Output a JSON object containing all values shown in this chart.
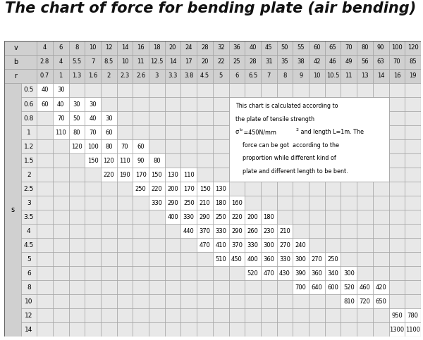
{
  "title": "The chart of force for bending plate (air bending)",
  "title_fontsize": 15,
  "background_color": "#ffffff",
  "header_bg": "#d0d0d0",
  "cell_bg_light": "#e8e8e8",
  "cell_bg_white": "#ffffff",
  "grid_color": "#999999",
  "v_row": [
    "4",
    "6",
    "8",
    "10",
    "12",
    "14",
    "16",
    "18",
    "20",
    "24",
    "28",
    "32",
    "36",
    "40",
    "45",
    "50",
    "55",
    "60",
    "65",
    "70",
    "80",
    "90",
    "100",
    "120"
  ],
  "b_row": [
    "2.8",
    "4",
    "5.5",
    "7",
    "8.5",
    "10",
    "11",
    "12.5",
    "14",
    "17",
    "20",
    "22",
    "25",
    "28",
    "31",
    "35",
    "38",
    "42",
    "46",
    "49",
    "56",
    "63",
    "70",
    "85"
  ],
  "r_row": [
    "0.7",
    "1",
    "1.3",
    "1.6",
    "2",
    "2.3",
    "2.6",
    "3",
    "3.3",
    "3.8",
    "4.5",
    "5",
    "6",
    "6.5",
    "7",
    "8",
    "9",
    "10",
    "10.5",
    "11",
    "13",
    "14",
    "16",
    "19"
  ],
  "s_rows": [
    {
      "s": "0.5",
      "data": [
        "40",
        "30",
        "",
        "",
        "",
        "",
        "",
        "",
        "",
        "",
        "",
        "",
        "",
        "",
        "",
        "",
        "",
        "",
        "",
        "",
        "",
        "",
        "",
        ""
      ]
    },
    {
      "s": "0.6",
      "data": [
        "60",
        "40",
        "30",
        "30",
        "",
        "",
        "",
        "",
        "",
        "",
        "",
        "",
        "",
        "",
        "",
        "",
        "",
        "",
        "",
        "",
        "",
        "",
        "",
        ""
      ]
    },
    {
      "s": "0.8",
      "data": [
        "",
        "70",
        "50",
        "40",
        "30",
        "",
        "",
        "",
        "",
        "",
        "",
        "",
        "",
        "",
        "",
        "",
        "",
        "",
        "",
        "",
        "",
        "",
        "",
        ""
      ]
    },
    {
      "s": "1",
      "data": [
        "",
        "110",
        "80",
        "70",
        "60",
        "",
        "",
        "",
        "",
        "",
        "",
        "",
        "",
        "",
        "",
        "",
        "",
        "",
        "",
        "",
        "",
        "",
        "",
        ""
      ]
    },
    {
      "s": "1.2",
      "data": [
        "",
        "",
        "120",
        "100",
        "80",
        "70",
        "60",
        "",
        "",
        "",
        "",
        "",
        "",
        "",
        "",
        "",
        "",
        "",
        "",
        "",
        "",
        "",
        "",
        ""
      ]
    },
    {
      "s": "1.5",
      "data": [
        "",
        "",
        "",
        "150",
        "120",
        "110",
        "90",
        "80",
        "",
        "",
        "",
        "",
        "",
        "",
        "",
        "",
        "",
        "",
        "",
        "",
        "",
        "",
        "",
        ""
      ]
    },
    {
      "s": "2",
      "data": [
        "",
        "",
        "",
        "",
        "220",
        "190",
        "170",
        "150",
        "130",
        "110",
        "",
        "",
        "",
        "",
        "",
        "",
        "",
        "",
        "",
        "",
        "",
        "",
        "",
        ""
      ]
    },
    {
      "s": "2.5",
      "data": [
        "",
        "",
        "",
        "",
        "",
        "",
        "250",
        "220",
        "200",
        "170",
        "150",
        "130",
        "",
        "",
        "",
        "",
        "",
        "",
        "",
        "",
        "",
        "",
        "",
        ""
      ]
    },
    {
      "s": "3",
      "data": [
        "",
        "",
        "",
        "",
        "",
        "",
        "",
        "330",
        "290",
        "250",
        "210",
        "180",
        "160",
        "",
        "",
        "",
        "",
        "",
        "",
        "",
        "",
        "",
        "",
        ""
      ]
    },
    {
      "s": "3.5",
      "data": [
        "",
        "",
        "",
        "",
        "",
        "",
        "",
        "",
        "400",
        "330",
        "290",
        "250",
        "220",
        "200",
        "180",
        "",
        "",
        "",
        "",
        "",
        "",
        "",
        "",
        ""
      ]
    },
    {
      "s": "4",
      "data": [
        "",
        "",
        "",
        "",
        "",
        "",
        "",
        "",
        "",
        "440",
        "370",
        "330",
        "290",
        "260",
        "230",
        "210",
        "",
        "",
        "",
        "",
        "",
        "",
        "",
        ""
      ]
    },
    {
      "s": "4.5",
      "data": [
        "",
        "",
        "",
        "",
        "",
        "",
        "",
        "",
        "",
        "",
        "470",
        "410",
        "370",
        "330",
        "300",
        "270",
        "240",
        "",
        "",
        "",
        "",
        "",
        "",
        ""
      ]
    },
    {
      "s": "5",
      "data": [
        "",
        "",
        "",
        "",
        "",
        "",
        "",
        "",
        "",
        "",
        "",
        "510",
        "450",
        "400",
        "360",
        "330",
        "300",
        "270",
        "250",
        "",
        "",
        "",
        "",
        ""
      ]
    },
    {
      "s": "6",
      "data": [
        "",
        "",
        "",
        "",
        "",
        "",
        "",
        "",
        "",
        "",
        "",
        "",
        "",
        "520",
        "470",
        "430",
        "390",
        "360",
        "340",
        "300",
        "",
        "",
        "",
        ""
      ]
    },
    {
      "s": "8",
      "data": [
        "",
        "",
        "",
        "",
        "",
        "",
        "",
        "",
        "",
        "",
        "",
        "",
        "",
        "",
        "",
        "",
        "700",
        "640",
        "600",
        "520",
        "460",
        "420",
        "",
        ""
      ]
    },
    {
      "s": "10",
      "data": [
        "",
        "",
        "",
        "",
        "",
        "",
        "",
        "",
        "",
        "",
        "",
        "",
        "",
        "",
        "",
        "",
        "",
        "",
        "",
        "810",
        "720",
        "650",
        "",
        ""
      ]
    },
    {
      "s": "12",
      "data": [
        "",
        "",
        "",
        "",
        "",
        "",
        "",
        "",
        "",
        "",
        "",
        "",
        "",
        "",
        "",
        "",
        "",
        "",
        "",
        "",
        "",
        "",
        "950",
        "780"
      ]
    },
    {
      "s": "14",
      "data": [
        "",
        "",
        "",
        "",
        "",
        "",
        "",
        "",
        "",
        "",
        "",
        "",
        "",
        "",
        "",
        "",
        "",
        "",
        "",
        "",
        "",
        "",
        "1300",
        "1100"
      ]
    }
  ],
  "note_lines": [
    "This chart is calculated according to",
    "the plate of tensile strength",
    "σᵇ =450N/mm² and length L=1m. The",
    "    force can be got  according to the",
    "    proportion while different kind of",
    "    plate and different length to be bent."
  ],
  "note_superscript": true
}
